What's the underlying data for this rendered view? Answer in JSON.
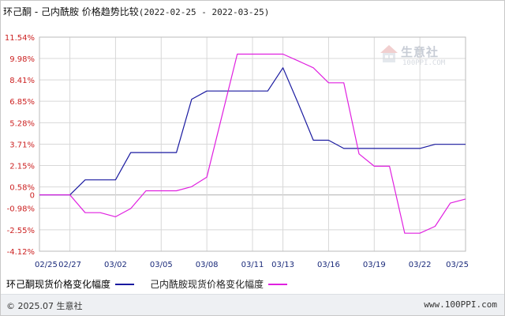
{
  "title": {
    "name": "环己酮 - 己内酰胺 价格趋势比较",
    "range": "(2022-02-25 - 2022-03-25)"
  },
  "watermark": {
    "text": "生意社",
    "url": "100PPI.COM"
  },
  "footer": {
    "copyright": "© 2025.07 生意社",
    "site": "www.100PPI.com"
  },
  "colors": {
    "series1": "#1a1aa0",
    "series2": "#e020e0",
    "tick_y": "#cc2222",
    "tick_x": "#1a2a7a",
    "grid": "#d8d8d8"
  },
  "chart_data": {
    "type": "line",
    "title": "环己酮 - 己内酰胺 价格趋势比较",
    "y_tick_labels": [
      "11.54%",
      "9.98%",
      "8.41%",
      "6.85%",
      "5.28%",
      "3.71%",
      "2.15%",
      "0.58%",
      "0",
      "-0.98%",
      "-2.55%",
      "-4.12%"
    ],
    "y_tick_values": [
      11.54,
      9.98,
      8.41,
      6.85,
      5.28,
      3.71,
      2.15,
      0.58,
      0,
      -0.98,
      -2.55,
      -4.12
    ],
    "ylim": [
      -4.12,
      11.54
    ],
    "x_tick_labels": [
      "02/25",
      "02/27",
      "03/02",
      "03/05",
      "03/08",
      "03/11",
      "03/13",
      "03/16",
      "03/19",
      "03/22",
      "03/25"
    ],
    "x_tick_days": [
      0,
      2,
      5,
      8,
      11,
      14,
      16,
      19,
      22,
      25,
      28
    ],
    "xlim": [
      0,
      28
    ],
    "grid": true,
    "legend_position": "bottom",
    "series": [
      {
        "name": "环己酮现货价格变化幅度",
        "points": [
          [
            0,
            0
          ],
          [
            2,
            0
          ],
          [
            3,
            1.1
          ],
          [
            4,
            1.1
          ],
          [
            5,
            1.1
          ],
          [
            6,
            3.1
          ],
          [
            7,
            3.1
          ],
          [
            8,
            3.1
          ],
          [
            9,
            3.1
          ],
          [
            10,
            7.0
          ],
          [
            11,
            7.6
          ],
          [
            12,
            7.6
          ],
          [
            13,
            7.6
          ],
          [
            14,
            7.6
          ],
          [
            15,
            7.6
          ],
          [
            16,
            9.3
          ],
          [
            17,
            6.7
          ],
          [
            18,
            4.0
          ],
          [
            19,
            4.0
          ],
          [
            20,
            3.4
          ],
          [
            21,
            3.4
          ],
          [
            22,
            3.4
          ],
          [
            23,
            3.4
          ],
          [
            24,
            3.4
          ],
          [
            25,
            3.4
          ],
          [
            26,
            3.7
          ],
          [
            27,
            3.7
          ],
          [
            28,
            3.7
          ]
        ]
      },
      {
        "name": "己内酰胺现货价格变化幅度",
        "points": [
          [
            0,
            0
          ],
          [
            2,
            0
          ],
          [
            3,
            -1.3
          ],
          [
            4,
            -1.3
          ],
          [
            5,
            -1.6
          ],
          [
            6,
            -1.0
          ],
          [
            7,
            0.3
          ],
          [
            8,
            0.3
          ],
          [
            9,
            0.3
          ],
          [
            10,
            0.6
          ],
          [
            11,
            1.3
          ],
          [
            12,
            5.8
          ],
          [
            13,
            10.3
          ],
          [
            14,
            10.3
          ],
          [
            15,
            10.3
          ],
          [
            16,
            10.3
          ],
          [
            17,
            9.8
          ],
          [
            18,
            9.3
          ],
          [
            19,
            8.2
          ],
          [
            20,
            8.2
          ],
          [
            21,
            3.0
          ],
          [
            22,
            2.1
          ],
          [
            23,
            2.1
          ],
          [
            24,
            -2.8
          ],
          [
            25,
            -2.8
          ],
          [
            26,
            -2.3
          ],
          [
            27,
            -0.6
          ],
          [
            28,
            -0.3
          ]
        ]
      }
    ]
  }
}
